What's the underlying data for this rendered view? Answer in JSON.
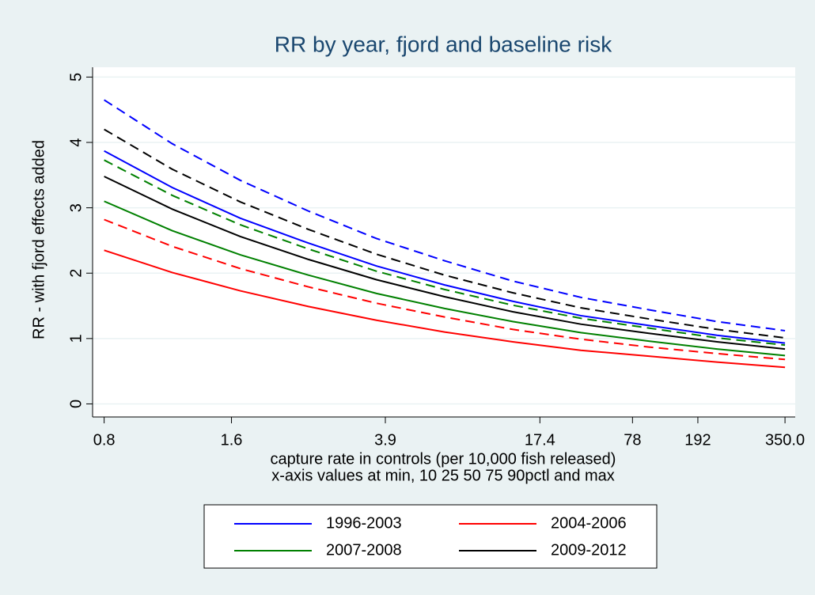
{
  "chart_data": {
    "type": "line",
    "title": "RR by year, fjord and baseline risk",
    "y_label": "RR - with fjord effects added",
    "x_label": "capture rate in controls (per 10,000 fish released)",
    "x_note": "x-axis values at min, 10 25 50 75 90pctl and max",
    "x": [
      0,
      10,
      20,
      30,
      40,
      50,
      60,
      70,
      80,
      90,
      100
    ],
    "xlim": [
      -1.7,
      101.5
    ],
    "xticks": [
      {
        "value": 0,
        "label": "0.8"
      },
      {
        "value": 18.7,
        "label": "1.6"
      },
      {
        "value": 41.3,
        "label": "3.9"
      },
      {
        "value": 64,
        "label": "17.4"
      },
      {
        "value": 77.6,
        "label": "78"
      },
      {
        "value": 87.2,
        "label": "192"
      },
      {
        "value": 100,
        "label": "350.0"
      }
    ],
    "ylim": [
      -0.2,
      5.15
    ],
    "yticks": [
      0,
      1,
      2,
      3,
      4,
      5
    ],
    "grid": true,
    "series": [
      {
        "color": "#0000ff",
        "dash": true,
        "values": [
          4.65,
          3.98,
          3.42,
          2.95,
          2.53,
          2.19,
          1.88,
          1.63,
          1.44,
          1.26,
          1.12
        ]
      },
      {
        "color": "#000000",
        "dash": true,
        "values": [
          4.2,
          3.59,
          3.09,
          2.67,
          2.29,
          1.97,
          1.7,
          1.47,
          1.3,
          1.14,
          1.01
        ]
      },
      {
        "name": "1996-2003",
        "color": "#0000ff",
        "dash": false,
        "values": [
          3.87,
          3.31,
          2.84,
          2.46,
          2.11,
          1.82,
          1.57,
          1.35,
          1.2,
          1.05,
          0.93
        ]
      },
      {
        "color": "#008000",
        "dash": true,
        "values": [
          3.73,
          3.19,
          2.74,
          2.37,
          2.03,
          1.75,
          1.51,
          1.31,
          1.16,
          1.01,
          0.9
        ]
      },
      {
        "name": "2009-2012",
        "color": "#000000",
        "dash": false,
        "values": [
          3.48,
          2.98,
          2.56,
          2.21,
          1.9,
          1.64,
          1.41,
          1.22,
          1.08,
          0.95,
          0.84
        ]
      },
      {
        "name": "2007-2008",
        "color": "#008000",
        "dash": false,
        "values": [
          3.1,
          2.65,
          2.28,
          1.97,
          1.69,
          1.46,
          1.26,
          1.09,
          0.96,
          0.84,
          0.74
        ]
      },
      {
        "color": "#ff0000",
        "dash": true,
        "values": [
          2.82,
          2.41,
          2.07,
          1.79,
          1.54,
          1.33,
          1.14,
          0.99,
          0.87,
          0.77,
          0.68
        ]
      },
      {
        "name": "2004-2006",
        "color": "#ff0000",
        "dash": false,
        "values": [
          2.35,
          2.01,
          1.73,
          1.49,
          1.28,
          1.1,
          0.95,
          0.82,
          0.73,
          0.64,
          0.56
        ]
      }
    ],
    "legend_order": [
      2,
      7,
      5,
      4
    ]
  }
}
